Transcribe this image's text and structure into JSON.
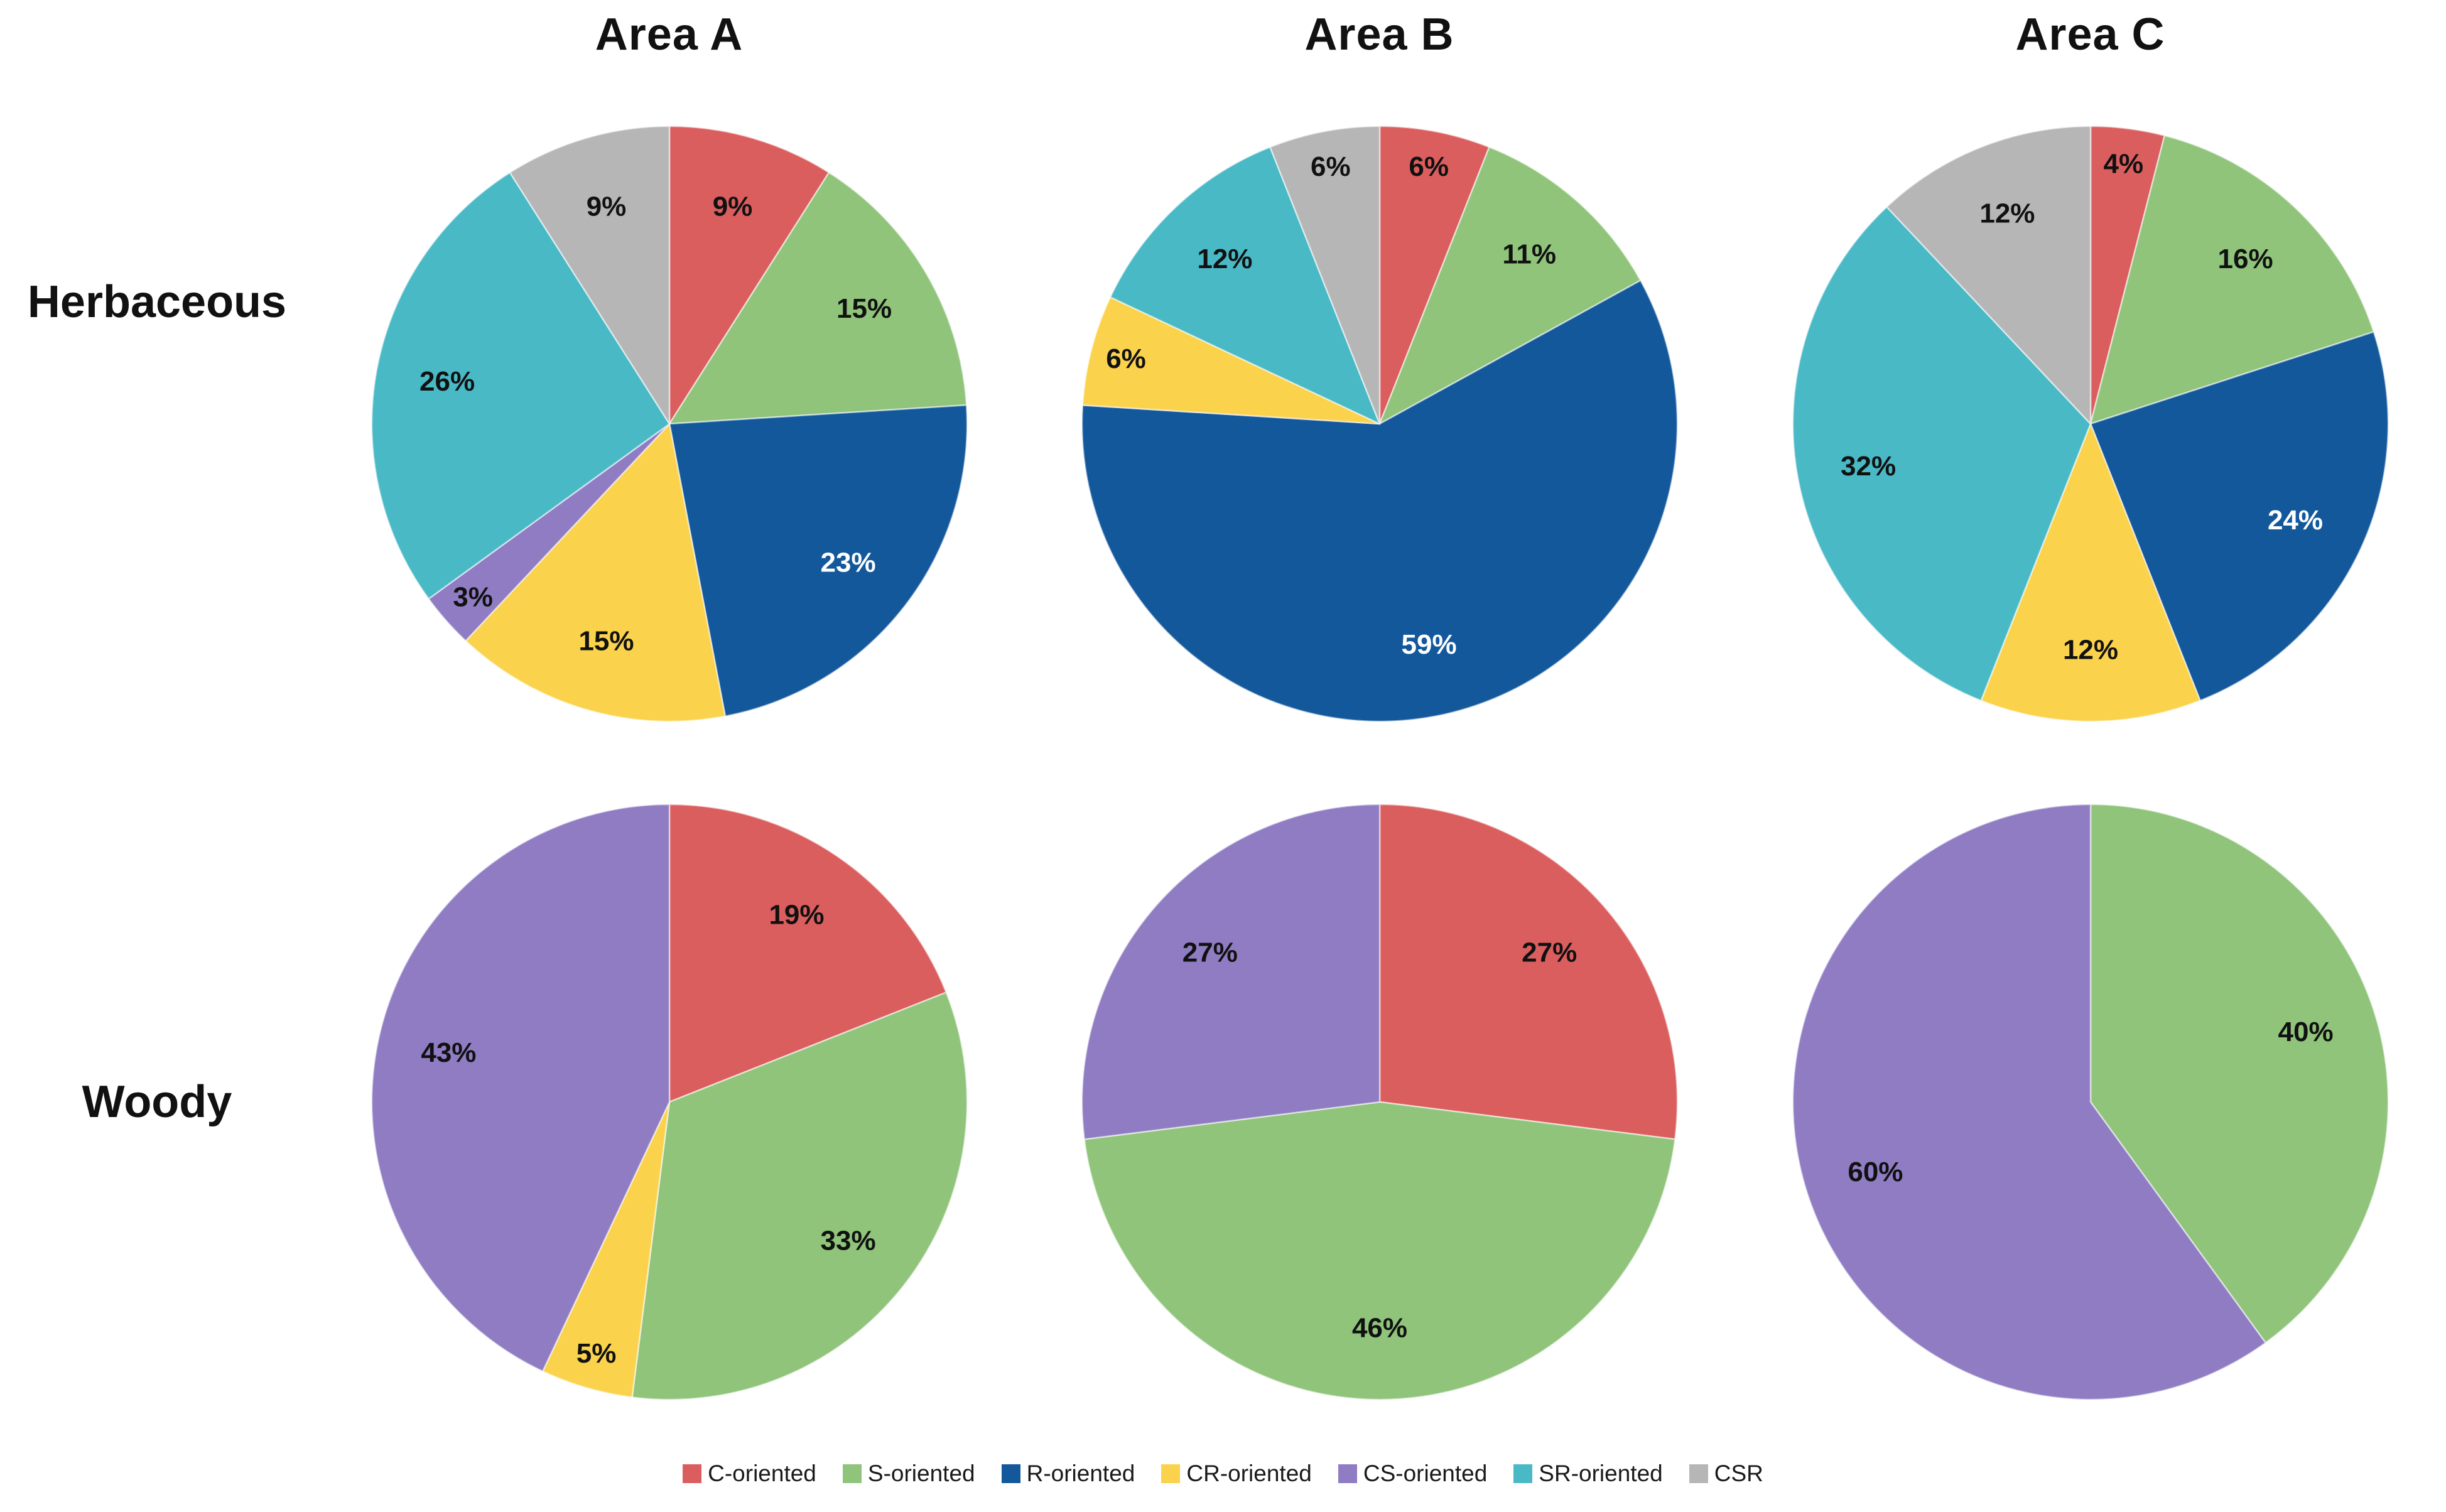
{
  "chart_data": {
    "type": "pie",
    "unit": "%",
    "grid": "2 rows x 3 columns of pie charts",
    "legend_position": "bottom",
    "rows": [
      "Herbaceous",
      "Woody"
    ],
    "columns": [
      "Area A",
      "Area B",
      "Area C"
    ],
    "categories": [
      "C-oriented",
      "S-oriented",
      "R-oriented",
      "CR-oriented",
      "CS-oriented",
      "SR-oriented",
      "CSR"
    ],
    "colors": {
      "C-oriented": "#DB5E5E",
      "S-oriented": "#8FC47A",
      "R-oriented": "#14589C",
      "CR-oriented": "#FBD24C",
      "CS-oriented": "#8F7CC3",
      "SR-oriented": "#49B9C6",
      "CSR": "#B6B6B6"
    },
    "pies": [
      {
        "row": "Herbaceous",
        "column": "Area A",
        "values": {
          "C-oriented": 9,
          "S-oriented": 15,
          "R-oriented": 23,
          "CR-oriented": 15,
          "CS-oriented": 3,
          "SR-oriented": 26,
          "CSR": 9
        }
      },
      {
        "row": "Herbaceous",
        "column": "Area B",
        "values": {
          "C-oriented": 6,
          "S-oriented": 11,
          "R-oriented": 59,
          "CR-oriented": 6,
          "CS-oriented": 0,
          "SR-oriented": 12,
          "CSR": 6
        }
      },
      {
        "row": "Herbaceous",
        "column": "Area C",
        "values": {
          "C-oriented": 4,
          "S-oriented": 16,
          "R-oriented": 24,
          "CR-oriented": 12,
          "CS-oriented": 0,
          "SR-oriented": 32,
          "CSR": 12
        }
      },
      {
        "row": "Woody",
        "column": "Area A",
        "values": {
          "C-oriented": 19,
          "S-oriented": 33,
          "R-oriented": 0,
          "CR-oriented": 5,
          "CS-oriented": 43,
          "SR-oriented": 0,
          "CSR": 0
        }
      },
      {
        "row": "Woody",
        "column": "Area B",
        "values": {
          "C-oriented": 27,
          "S-oriented": 46,
          "R-oriented": 0,
          "CR-oriented": 0,
          "CS-oriented": 27,
          "SR-oriented": 0,
          "CSR": 0
        }
      },
      {
        "row": "Woody",
        "column": "Area C",
        "values": {
          "C-oriented": 0,
          "S-oriented": 40,
          "R-oriented": 0,
          "CR-oriented": 0,
          "CS-oriented": 60,
          "SR-oriented": 0,
          "CSR": 0
        }
      }
    ],
    "data_label_format": "value + %",
    "label_text_colors": {
      "dark_slices": "#ffffff",
      "light_slices": "#111111"
    }
  }
}
